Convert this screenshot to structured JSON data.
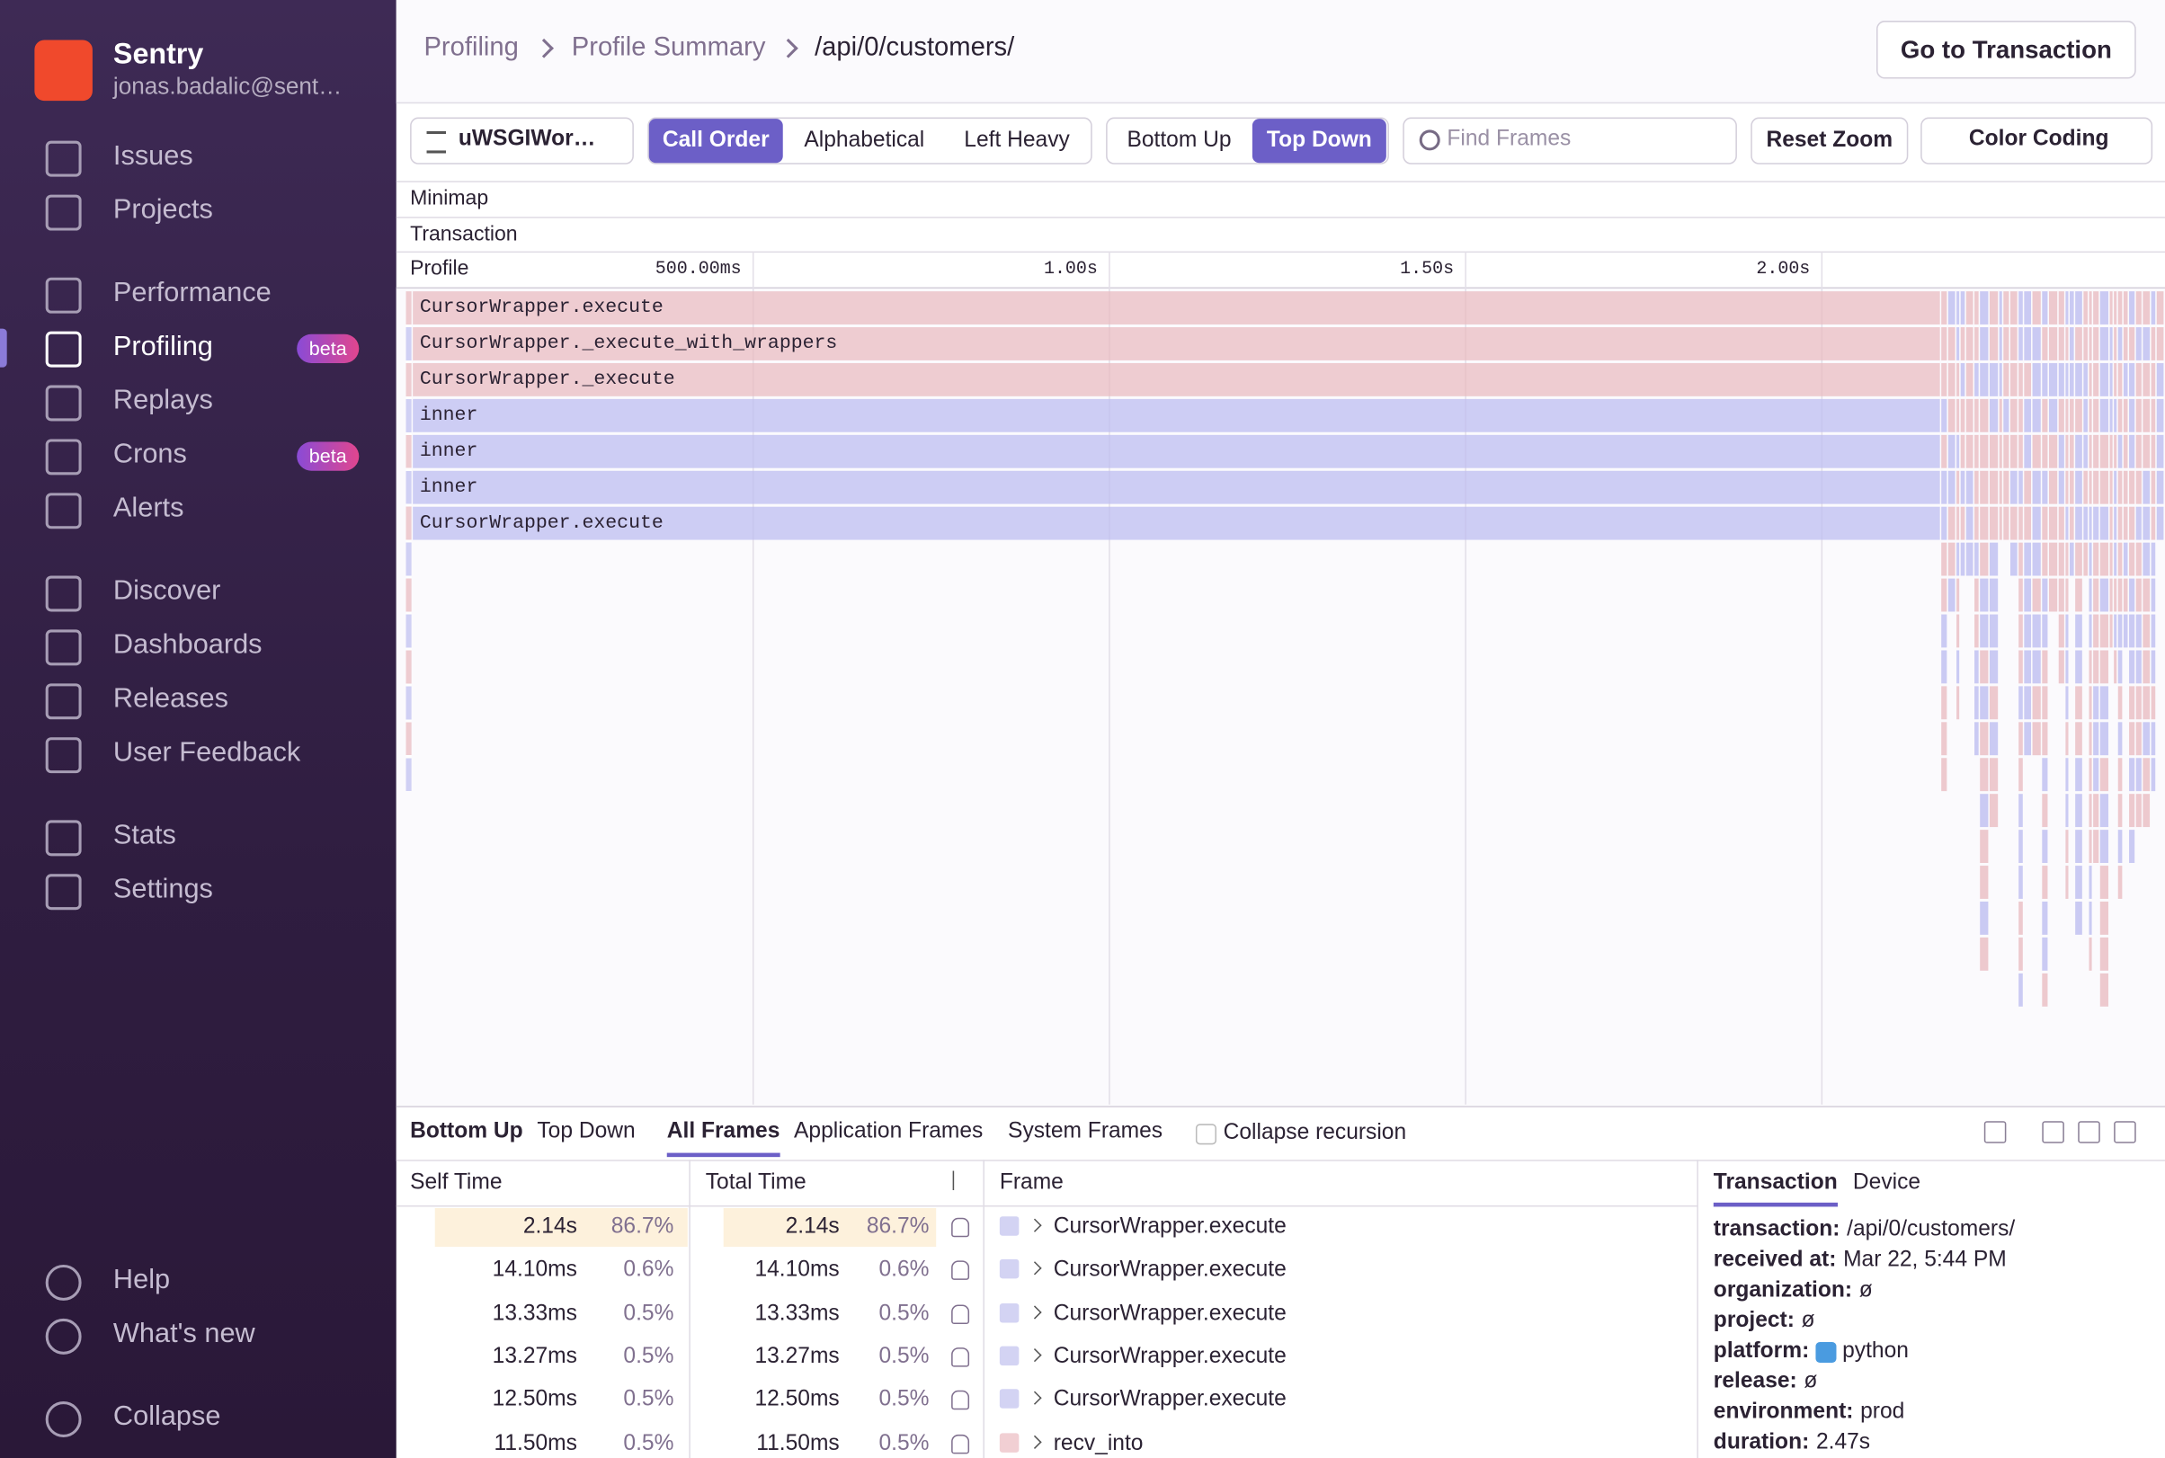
{
  "sidebar": {
    "org": "Sentry",
    "user": "jonas.badalic@sent…",
    "nav": [
      {
        "label": "Issues"
      },
      {
        "label": "Projects"
      },
      {
        "label": "Performance"
      },
      {
        "label": "Profiling",
        "badge": "beta"
      },
      {
        "label": "Replays"
      },
      {
        "label": "Crons",
        "badge": "beta"
      },
      {
        "label": "Alerts"
      },
      {
        "label": "Discover"
      },
      {
        "label": "Dashboards"
      },
      {
        "label": "Releases"
      },
      {
        "label": "User Feedback"
      },
      {
        "label": "Stats"
      },
      {
        "label": "Settings"
      },
      {
        "label": "Help"
      },
      {
        "label": "What's new"
      },
      {
        "label": "Collapse"
      }
    ]
  },
  "header": {
    "breadcrumbs": [
      "Profiling",
      "Profile Summary",
      "/api/0/customers/"
    ],
    "button": "Go to Transaction"
  },
  "toolbar": {
    "thread": "uWSGIWor…",
    "order": [
      "Call Order",
      "Alphabetical",
      "Left Heavy"
    ],
    "view": [
      "Bottom Up",
      "Top Down"
    ],
    "search_placeholder": "Find Frames",
    "reset": "Reset Zoom",
    "color_coding": "Color Coding"
  },
  "flamegraph": {
    "minimap": "Minimap",
    "transaction": "Transaction",
    "profile": "Profile",
    "ticks": [
      "500.00ms",
      "1.00s",
      "1.50s",
      "2.00s"
    ],
    "frames": [
      "CursorWrapper.execute",
      "CursorWrapper._execute_with_wrappers",
      "CursorWrapper._execute",
      "inner",
      "inner",
      "inner",
      "CursorWrapper.execute"
    ]
  },
  "panel": {
    "tabs": [
      "Bottom Up",
      "Top Down"
    ],
    "filters": [
      "All Frames",
      "Application Frames",
      "System Frames"
    ],
    "collapse": "Collapse recursion",
    "columns": [
      "Self Time",
      "Total Time",
      "Frame"
    ],
    "rows": [
      [
        "2.14s",
        "86.7%",
        "2.14s",
        "86.7%",
        "CursorWrapper.execute"
      ],
      [
        "14.10ms",
        "0.6%",
        "14.10ms",
        "0.6%",
        "CursorWrapper.execute"
      ],
      [
        "13.33ms",
        "0.5%",
        "13.33ms",
        "0.5%",
        "CursorWrapper.execute"
      ],
      [
        "13.27ms",
        "0.5%",
        "13.27ms",
        "0.5%",
        "CursorWrapper.execute"
      ],
      [
        "12.50ms",
        "0.5%",
        "12.50ms",
        "0.5%",
        "CursorWrapper.execute"
      ],
      [
        "11.50ms",
        "0.5%",
        "11.50ms",
        "0.5%",
        "recv_into"
      ]
    ],
    "details_tabs": [
      "Transaction",
      "Device"
    ],
    "details": [
      [
        "transaction:",
        "/api/0/customers/"
      ],
      [
        "received at:",
        "Mar 22, 5:44 PM"
      ],
      [
        "organization:",
        "ø"
      ],
      [
        "project:",
        "ø"
      ],
      [
        "platform:",
        "python"
      ],
      [
        "release:",
        "ø"
      ],
      [
        "environment:",
        "prod"
      ],
      [
        "duration:",
        "2.47s"
      ]
    ]
  }
}
